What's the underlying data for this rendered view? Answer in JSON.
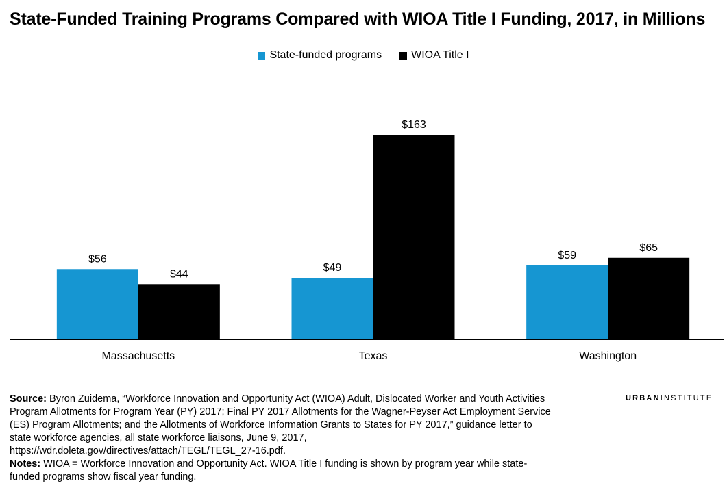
{
  "title": "State-Funded Training Programs Compared with WIOA Title I Funding, 2017, in Millions",
  "brand": {
    "part1": "URBAN",
    "part2": "INSTITUTE"
  },
  "colors": {
    "state": "#1696d2",
    "wioa": "#000000"
  },
  "chart_data": {
    "type": "bar",
    "title": "State-Funded Training Programs Compared with WIOA Title I Funding, 2017, in Millions",
    "categories": [
      "Massachusetts",
      "Texas",
      "Washington"
    ],
    "series": [
      {
        "name": "State-funded programs",
        "values": [
          56,
          49,
          59
        ],
        "labels": [
          "$56",
          "$49",
          "$59"
        ],
        "color": "#1696d2"
      },
      {
        "name": "WIOA Title I",
        "values": [
          44,
          163,
          65
        ],
        "labels": [
          "$44",
          "$163",
          "$65"
        ],
        "color": "#000000"
      }
    ],
    "ylim": [
      0,
      180
    ],
    "grid": false,
    "legend": "top-center"
  },
  "source": {
    "label": "Source:",
    "text": " Byron Zuidema, “Workforce Innovation and Opportunity Act (WIOA) Adult, Dislocated Worker and Youth Activities Program Allotments for Program Year (PY) 2017; Final PY 2017 Allotments for the Wagner-Peyser Act Employment Service (ES) Program Allotments; and the Allotments of Workforce Information Grants to States for PY 2017,” guidance letter to state workforce agencies, all state workforce liaisons, June 9, 2017, https://wdr.doleta.gov/directives/attach/TEGL/TEGL_27-16.pdf."
  },
  "notes": {
    "label": "Notes:",
    "text": " WIOA = Workforce Innovation and Opportunity Act. WIOA Title I funding is shown by program year while state-funded programs show fiscal year funding."
  }
}
